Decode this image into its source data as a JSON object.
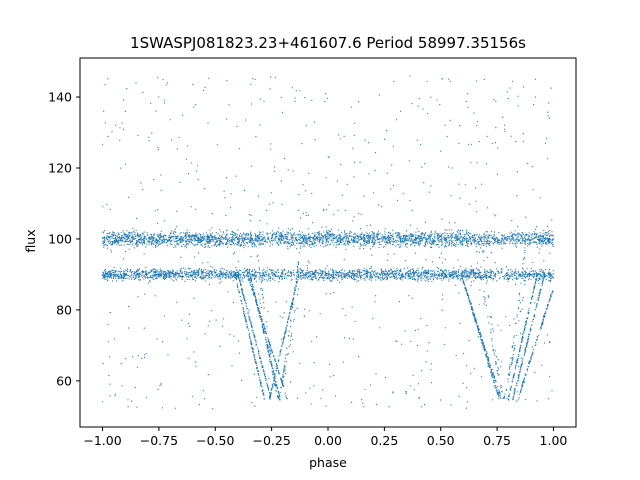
{
  "chart_data": {
    "type": "scatter",
    "title": "1SWASPJ081823.23+461607.6 Period 58997.35156s",
    "xlabel": "phase",
    "ylabel": "flux",
    "xlim": [
      -1.1,
      1.1
    ],
    "ylim": [
      47,
      151
    ],
    "xticks": [
      -1.0,
      -0.75,
      -0.5,
      -0.25,
      0.0,
      0.25,
      0.5,
      0.75,
      1.0
    ],
    "xtick_labels": [
      "−1.00",
      "−0.75",
      "−0.50",
      "−0.25",
      "0.00",
      "0.25",
      "0.50",
      "0.75",
      "1.00"
    ],
    "yticks": [
      60,
      80,
      100,
      120,
      140
    ],
    "ytick_labels": [
      "60",
      "80",
      "100",
      "120",
      "140"
    ],
    "grid": false,
    "point_color": "#1f77b4",
    "series": [
      {
        "phase_range": [
          -1.0,
          1.0
        ],
        "bands": [
          {
            "flux_mean": 100,
            "flux_spread": 2.0
          },
          {
            "flux_mean": 90,
            "flux_spread": 1.6
          }
        ],
        "eclipse_phases": [
          -0.22,
          0.78
        ],
        "eclipse_min_flux": 55,
        "eclipse_phase_width": 0.2,
        "scatter_flux_range": [
          52,
          146
        ]
      }
    ]
  }
}
